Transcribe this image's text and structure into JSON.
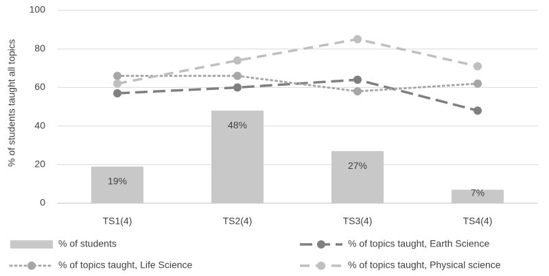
{
  "chart_data": {
    "type": "combo",
    "ylabel": "% of students taught all topics",
    "categories": [
      "TS1(4)",
      "TS2(4)",
      "TS3(4)",
      "TS4(4)"
    ],
    "ylim": [
      0,
      100
    ],
    "yticks": [
      0,
      20,
      40,
      60,
      80,
      100
    ],
    "grid": true,
    "legend": "bottom",
    "series": [
      {
        "name": "% of students",
        "type": "bar",
        "color": "#c8c8c8",
        "values": [
          19,
          48,
          27,
          7
        ],
        "value_labels": [
          "19%",
          "48%",
          "27%",
          "7%"
        ]
      },
      {
        "name": "% of topics taught, Earth Science",
        "type": "line",
        "line_style": "long-dash",
        "color": "#7f7f7f",
        "values": [
          57,
          60,
          64,
          48
        ]
      },
      {
        "name": "% of topics taught, Life Science",
        "type": "line",
        "line_style": "dotted",
        "color": "#a6a6a6",
        "values": [
          66,
          66,
          58,
          62
        ]
      },
      {
        "name": "% of topics taught, Physical science",
        "type": "line",
        "line_style": "dash",
        "color": "#bfbfbf",
        "values": [
          62,
          74,
          85,
          71
        ]
      }
    ]
  }
}
